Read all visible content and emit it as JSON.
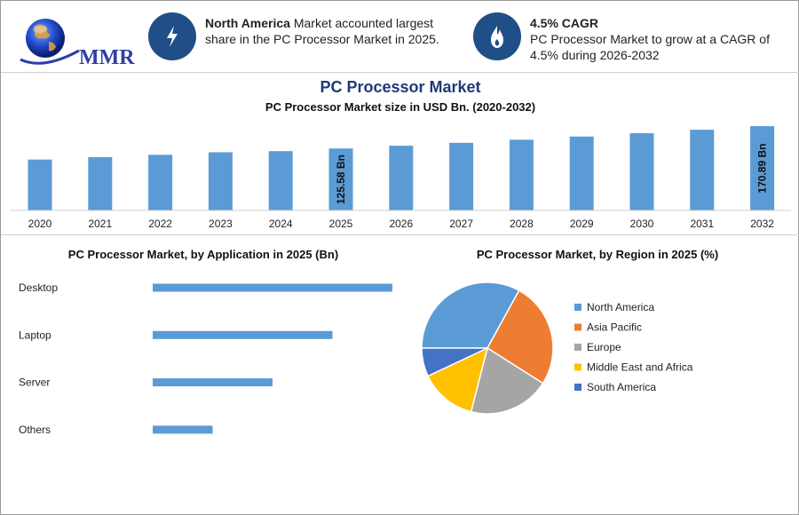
{
  "brand": {
    "logo_text": "MMR"
  },
  "info_cards": [
    {
      "icon": "lightning-icon",
      "bold": "North America",
      "text": " Market accounted largest share in the PC Processor Market in 2025."
    },
    {
      "icon": "flame-icon",
      "bold": "4.5% CAGR",
      "text": "PC Processor Market to grow at a CAGR of 4.5% during 2026-2032"
    }
  ],
  "colors": {
    "bar": "#5b9bd5",
    "accent": "#1f4f86",
    "title": "#1f3a78"
  },
  "chart_data": [
    {
      "type": "bar",
      "title": "PC Processor Market",
      "subtitle": "PC Processor Market size in USD Bn. (2020-2032)",
      "categories": [
        "2020",
        "2021",
        "2022",
        "2023",
        "2024",
        "2025",
        "2026",
        "2027",
        "2028",
        "2029",
        "2030",
        "2031",
        "2032"
      ],
      "values": [
        103.2,
        107.9,
        112.8,
        117.9,
        120.2,
        125.58,
        131.2,
        137.1,
        143.3,
        149.8,
        156.5,
        163.6,
        170.89
      ],
      "data_labels": {
        "2025": "125.58 Bn",
        "2032": "170.89 Bn"
      },
      "ylim": [
        0,
        180
      ],
      "xlabel": "",
      "ylabel": ""
    },
    {
      "type": "bar",
      "orientation": "horizontal",
      "title": "PC Processor Market, by Application in 2025 (Bn)",
      "categories": [
        "Desktop",
        "Laptop",
        "Server",
        "Others"
      ],
      "values": [
        54,
        40.5,
        27,
        13.5
      ],
      "xlim": [
        0,
        60
      ]
    },
    {
      "type": "pie",
      "title": "PC Processor Market, by Region in 2025 (%)",
      "legend_position": "right",
      "series": [
        {
          "name": "North America",
          "value": 33,
          "color": "#5b9bd5"
        },
        {
          "name": "Asia Pacific",
          "value": 26,
          "color": "#ed7d31"
        },
        {
          "name": "Europe",
          "value": 20,
          "color": "#a5a5a5"
        },
        {
          "name": "Middle East and Africa",
          "value": 14,
          "color": "#ffc000"
        },
        {
          "name": "South America",
          "value": 7,
          "color": "#4472c4"
        }
      ]
    }
  ]
}
